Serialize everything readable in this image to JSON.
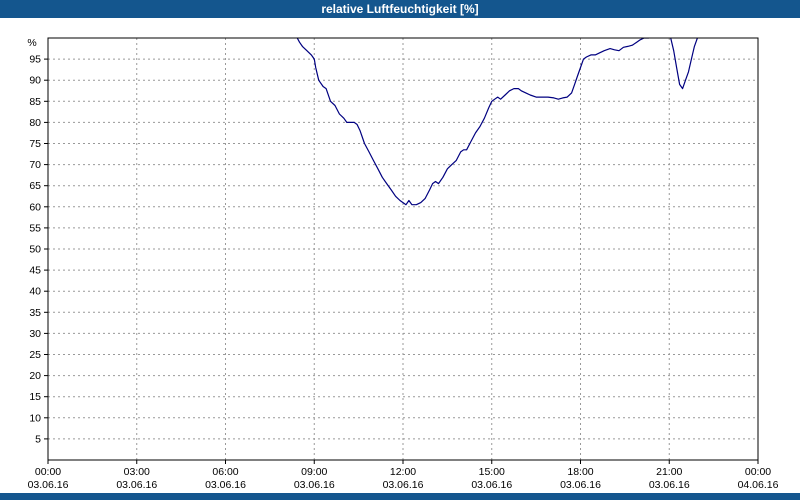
{
  "title": "relative Luftfeuchtigkeit [%]",
  "colors": {
    "titlebar": "#14568E",
    "line": "#000080",
    "grid": "#999999",
    "border": "#000000",
    "text": "#000000",
    "background": "#FFFFFF"
  },
  "chart_data": {
    "type": "line",
    "title": "relative Luftfeuchtigkeit [%]",
    "unit_label": "%",
    "xlabel": "",
    "ylabel": "%",
    "ylim": [
      0,
      100
    ],
    "y_tick_step": 5,
    "y_tick_labels": [
      5,
      10,
      15,
      20,
      25,
      30,
      35,
      40,
      45,
      50,
      55,
      60,
      65,
      70,
      75,
      80,
      85,
      90,
      95
    ],
    "x_range_hours": [
      0,
      24
    ],
    "grid": true,
    "legend": "none",
    "x_ticks": [
      {
        "hour": 0,
        "time": "00:00",
        "date": "03.06.16"
      },
      {
        "hour": 3,
        "time": "03:00",
        "date": "03.06.16"
      },
      {
        "hour": 6,
        "time": "06:00",
        "date": "03.06.16"
      },
      {
        "hour": 9,
        "time": "09:00",
        "date": "03.06.16"
      },
      {
        "hour": 12,
        "time": "12:00",
        "date": "03.06.16"
      },
      {
        "hour": 15,
        "time": "15:00",
        "date": "03.06.16"
      },
      {
        "hour": 18,
        "time": "18:00",
        "date": "03.06.16"
      },
      {
        "hour": 21,
        "time": "21:00",
        "date": "03.06.16"
      },
      {
        "hour": 24,
        "time": "00:00",
        "date": "04.06.16"
      }
    ],
    "series": [
      {
        "name": "relative Luftfeuchtigkeit",
        "points": [
          [
            8.35,
            101
          ],
          [
            8.5,
            99
          ],
          [
            8.6,
            98
          ],
          [
            8.75,
            97
          ],
          [
            8.9,
            96
          ],
          [
            9.0,
            95
          ],
          [
            9.05,
            93
          ],
          [
            9.15,
            90
          ],
          [
            9.3,
            88.5
          ],
          [
            9.4,
            88
          ],
          [
            9.55,
            85
          ],
          [
            9.7,
            84
          ],
          [
            9.85,
            82
          ],
          [
            10.0,
            81
          ],
          [
            10.1,
            80
          ],
          [
            10.35,
            80
          ],
          [
            10.45,
            79.5
          ],
          [
            10.55,
            78
          ],
          [
            10.7,
            75
          ],
          [
            10.85,
            73
          ],
          [
            11.0,
            71
          ],
          [
            11.15,
            69
          ],
          [
            11.3,
            67
          ],
          [
            11.45,
            65.5
          ],
          [
            11.6,
            64
          ],
          [
            11.75,
            62.5
          ],
          [
            11.9,
            61.5
          ],
          [
            12.0,
            61
          ],
          [
            12.1,
            60.5
          ],
          [
            12.2,
            61.5
          ],
          [
            12.3,
            60.5
          ],
          [
            12.45,
            60.5
          ],
          [
            12.6,
            61
          ],
          [
            12.75,
            62
          ],
          [
            12.9,
            64
          ],
          [
            13.0,
            65.5
          ],
          [
            13.1,
            66
          ],
          [
            13.2,
            65.5
          ],
          [
            13.35,
            67
          ],
          [
            13.5,
            69
          ],
          [
            13.65,
            70
          ],
          [
            13.8,
            71
          ],
          [
            13.95,
            73
          ],
          [
            14.05,
            73.5
          ],
          [
            14.15,
            73.5
          ],
          [
            14.3,
            75.5
          ],
          [
            14.45,
            77.5
          ],
          [
            14.6,
            79
          ],
          [
            14.75,
            81
          ],
          [
            14.9,
            83.5
          ],
          [
            15.0,
            85
          ],
          [
            15.1,
            85.5
          ],
          [
            15.2,
            86
          ],
          [
            15.3,
            85.5
          ],
          [
            15.45,
            86.5
          ],
          [
            15.6,
            87.5
          ],
          [
            15.75,
            88
          ],
          [
            15.9,
            88
          ],
          [
            16.0,
            87.5
          ],
          [
            16.15,
            87
          ],
          [
            16.3,
            86.5
          ],
          [
            16.5,
            86
          ],
          [
            16.7,
            86
          ],
          [
            16.9,
            86
          ],
          [
            17.1,
            85.8
          ],
          [
            17.25,
            85.5
          ],
          [
            17.4,
            85.8
          ],
          [
            17.55,
            86
          ],
          [
            17.7,
            87
          ],
          [
            17.8,
            89
          ],
          [
            17.9,
            91
          ],
          [
            18.0,
            93
          ],
          [
            18.1,
            95
          ],
          [
            18.2,
            95.5
          ],
          [
            18.35,
            96
          ],
          [
            18.5,
            96
          ],
          [
            18.65,
            96.5
          ],
          [
            18.8,
            97
          ],
          [
            19.0,
            97.5
          ],
          [
            19.15,
            97.2
          ],
          [
            19.3,
            97
          ],
          [
            19.45,
            97.8
          ],
          [
            19.6,
            98
          ],
          [
            19.75,
            98.3
          ],
          [
            19.9,
            99
          ],
          [
            20.0,
            99.5
          ],
          [
            20.15,
            100
          ],
          [
            20.3,
            100
          ],
          [
            20.5,
            100.3
          ],
          [
            20.7,
            100.5
          ],
          [
            20.9,
            100.5
          ],
          [
            21.05,
            100
          ],
          [
            21.15,
            97
          ],
          [
            21.25,
            93
          ],
          [
            21.35,
            89
          ],
          [
            21.45,
            88
          ],
          [
            21.55,
            90
          ],
          [
            21.65,
            92
          ],
          [
            21.75,
            95
          ],
          [
            21.85,
            98
          ],
          [
            21.95,
            100
          ],
          [
            22.05,
            101
          ]
        ]
      }
    ]
  }
}
